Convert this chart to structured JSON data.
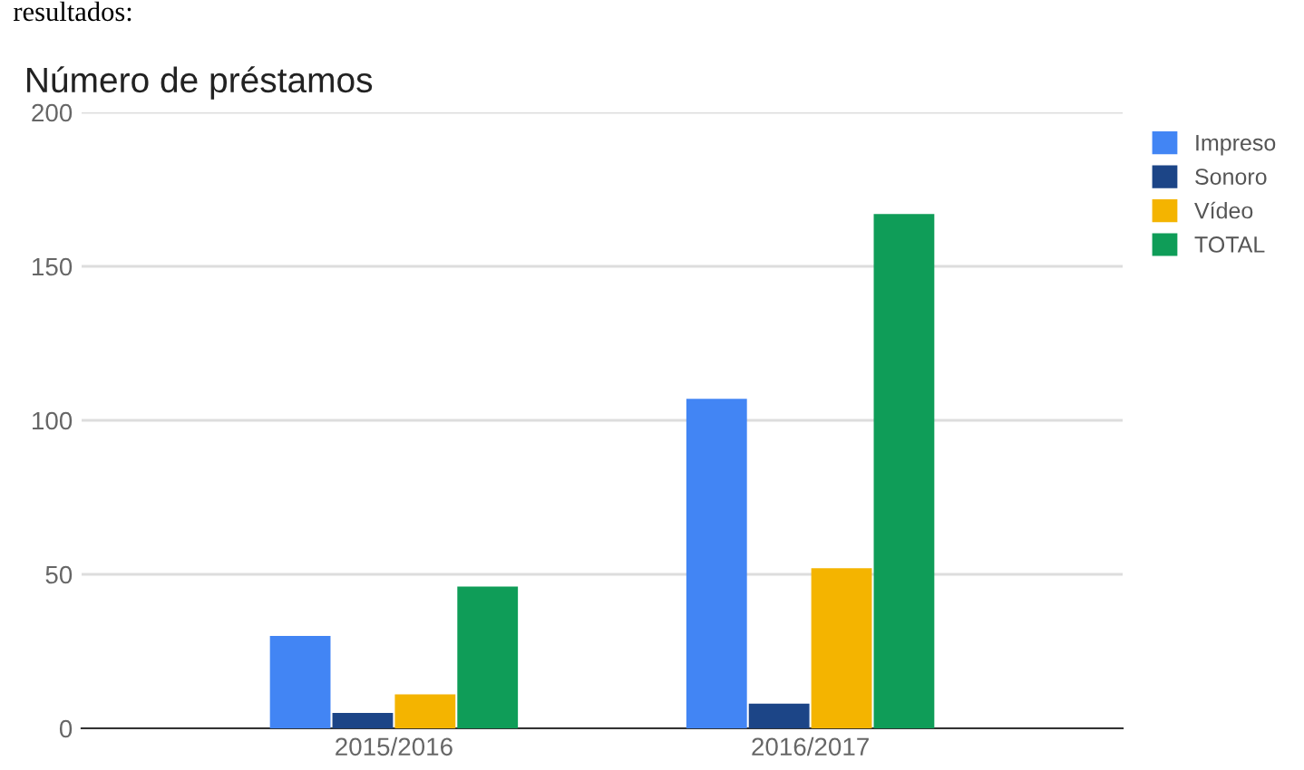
{
  "chart_data": {
    "type": "bar",
    "title": "Número de préstamos",
    "categories": [
      "2015/2016",
      "2016/2017"
    ],
    "series": [
      {
        "name": "Impreso",
        "color": "#4285f4",
        "values": [
          30,
          107
        ]
      },
      {
        "name": "Sonoro",
        "color": "#1c4587",
        "values": [
          5,
          8
        ]
      },
      {
        "name": "Vídeo",
        "color": "#f4b400",
        "values": [
          11,
          52
        ]
      },
      {
        "name": "TOTAL",
        "color": "#0f9d58",
        "values": [
          46,
          167
        ]
      }
    ],
    "ylim": [
      0,
      200
    ],
    "yticks": [
      0,
      50,
      100,
      150,
      200
    ],
    "grid": "y",
    "legend": "right",
    "annotations": [
      "resultados:"
    ]
  }
}
